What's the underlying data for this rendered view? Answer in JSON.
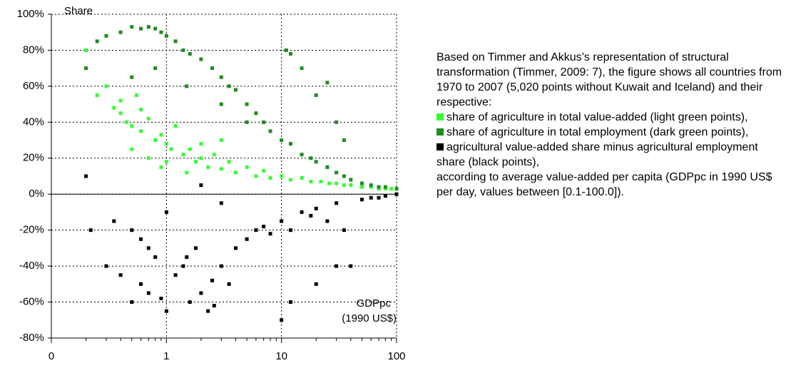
{
  "chart_data": {
    "type": "scatter",
    "annotations": [
      "Share",
      "GDPpc",
      "(1990 US$)"
    ],
    "note": {
      "intro": "Based on Timmer and Akkus’s  representation of structural transformation (Timmer, 2009: 7), the figure shows all countries from 1970 to 2007 (5,020 points without Kuwait and Iceland) and their respective:",
      "outro": "according to average value-added per capita (GDPpc in 1990 US$ per day, values between [0.1-100.0])."
    },
    "xlog": true,
    "grid": true,
    "xlim": [
      0.1,
      100
    ],
    "xticks": [
      {
        "value": 0.1,
        "label": "0"
      },
      1,
      10,
      100
    ],
    "xminorticks": [
      0.2,
      0.3,
      0.4,
      0.5,
      0.6,
      0.7,
      0.8,
      0.9,
      2,
      3,
      4,
      5,
      6,
      7,
      8,
      9,
      20,
      30,
      40,
      50,
      60,
      70,
      80,
      90
    ],
    "ylim": [
      -80,
      100
    ],
    "yticks": [
      {
        "value": 100,
        "label": "100%"
      },
      {
        "value": 80,
        "label": "80%"
      },
      {
        "value": 60,
        "label": "60%"
      },
      {
        "value": 40,
        "label": "40%"
      },
      {
        "value": 20,
        "label": "20%"
      },
      {
        "value": 0,
        "label": "0%"
      },
      {
        "value": -20,
        "label": "-20%"
      },
      {
        "value": -40,
        "label": "-40%"
      },
      {
        "value": -60,
        "label": "-60%"
      },
      {
        "value": -80,
        "label": "-80%"
      }
    ],
    "series": [
      {
        "name": "share of agriculture in total value-added (light green points),",
        "color": "#33ff33",
        "x": [
          0.2,
          0.25,
          0.3,
          0.35,
          0.4,
          0.45,
          0.5,
          0.55,
          0.6,
          0.7,
          0.8,
          0.9,
          1,
          1.1,
          1.2,
          1.4,
          1.6,
          1.8,
          2,
          2.3,
          2.6,
          3,
          3.5,
          4,
          5,
          6,
          7,
          8,
          10,
          12,
          15,
          18,
          22,
          26,
          30,
          35,
          40,
          50,
          60,
          70,
          80,
          90,
          100,
          0.5,
          0.7,
          1,
          1.5,
          2,
          3,
          0.4,
          0.6,
          0.9
        ],
        "values": [
          80,
          55,
          60,
          48,
          45,
          40,
          38,
          55,
          35,
          42,
          30,
          33,
          28,
          25,
          38,
          22,
          25,
          18,
          20,
          15,
          22,
          14,
          18,
          12,
          15,
          10,
          13,
          9,
          10,
          8,
          9,
          7,
          7,
          6,
          6,
          5,
          5,
          4,
          4,
          3,
          3,
          3,
          3,
          25,
          20,
          18,
          12,
          28,
          30,
          52,
          47,
          15
        ]
      },
      {
        "name": "share of agriculture in total employment (dark green points),",
        "color": "#1e8c1e",
        "x": [
          0.2,
          0.25,
          0.3,
          0.4,
          0.5,
          0.6,
          0.7,
          0.8,
          0.9,
          1,
          1.2,
          1.4,
          1.6,
          2,
          2.5,
          3,
          3.5,
          4,
          5,
          6,
          7,
          8,
          10,
          12,
          15,
          18,
          20,
          25,
          30,
          35,
          40,
          50,
          60,
          70,
          80,
          100,
          11,
          12,
          15,
          20,
          25,
          30,
          35,
          0.5,
          0.8,
          1.5,
          3,
          5
        ],
        "values": [
          70,
          85,
          88,
          90,
          93,
          92,
          93,
          92,
          90,
          88,
          85,
          80,
          78,
          75,
          70,
          65,
          60,
          58,
          50,
          45,
          40,
          35,
          30,
          28,
          22,
          20,
          18,
          15,
          12,
          10,
          8,
          6,
          5,
          4,
          4,
          3,
          80,
          78,
          70,
          55,
          62,
          40,
          30,
          65,
          70,
          60,
          50,
          40
        ]
      },
      {
        "name": "agricultural value-added share minus agricultural employment share (black points),",
        "color": "#000000",
        "x": [
          0.2,
          0.22,
          0.3,
          0.35,
          0.4,
          0.5,
          0.6,
          0.7,
          0.8,
          0.9,
          1,
          1.2,
          1.4,
          1.6,
          1.8,
          2,
          2.3,
          2.6,
          3,
          3.5,
          4,
          5,
          6,
          7,
          8,
          10,
          12,
          15,
          18,
          20,
          25,
          30,
          35,
          40,
          50,
          60,
          70,
          80,
          100,
          0.5,
          0.7,
          1,
          2,
          3,
          0.6,
          1.5,
          2.5,
          10,
          12,
          20,
          30
        ],
        "values": [
          10,
          -20,
          -40,
          -15,
          -45,
          -60,
          -50,
          -55,
          -35,
          -58,
          -65,
          -45,
          -40,
          -60,
          -30,
          -55,
          -65,
          -62,
          -40,
          -50,
          -30,
          -25,
          -20,
          -18,
          -22,
          -15,
          -20,
          -10,
          -12,
          -8,
          -15,
          -5,
          -20,
          -40,
          -3,
          -2,
          -2,
          -1,
          0,
          -20,
          -30,
          -10,
          5,
          -5,
          -25,
          -35,
          -48,
          -70,
          -60,
          -50,
          -40
        ]
      }
    ]
  }
}
